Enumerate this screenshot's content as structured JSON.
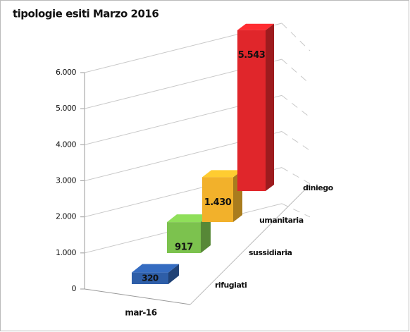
{
  "chart_data": {
    "type": "bar",
    "title": "tipologie esiti Marzo 2016",
    "categories": [
      "mar-16"
    ],
    "series": [
      {
        "name": "rifugiati",
        "color": "#2e5ea8",
        "values": [
          320
        ],
        "value_labels": [
          "320"
        ]
      },
      {
        "name": "sussidiaria",
        "color": "#7cc24e",
        "values": [
          917
        ],
        "value_labels": [
          "917"
        ]
      },
      {
        "name": "umanitaria",
        "color": "#f2b12b",
        "values": [
          1430
        ],
        "value_labels": [
          "1.430"
        ]
      },
      {
        "name": "diniego",
        "color": "#e0262b",
        "values": [
          5543
        ],
        "value_labels": [
          "5.543"
        ]
      }
    ],
    "ylim": [
      0,
      6000
    ],
    "yticks": [
      0,
      {
        "value": 1000,
        "label": "1.000"
      },
      {
        "value": 2000,
        "label": "2.000"
      },
      {
        "value": 3000,
        "label": "3.000"
      },
      {
        "value": 4000,
        "label": "4.000"
      },
      {
        "value": 5000,
        "label": "5.000"
      },
      {
        "value": 6000,
        "label": "6.000"
      }
    ],
    "grid": true
  }
}
